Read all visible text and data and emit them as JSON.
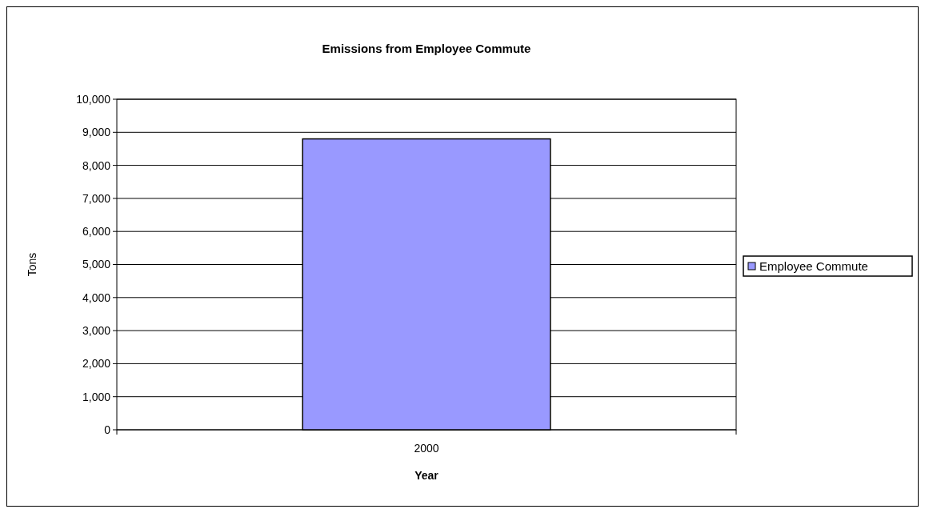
{
  "chart_data": {
    "type": "bar",
    "title": "Emissions from Employee Commute",
    "xlabel": "Year",
    "ylabel": "Tons",
    "categories": [
      "2000"
    ],
    "series": [
      {
        "name": "Employee Commute",
        "color": "#9999ff",
        "values": [
          8800
        ]
      }
    ],
    "ylim": [
      0,
      10000
    ],
    "yticks": [
      {
        "value": 0,
        "label": "0"
      },
      {
        "value": 1000,
        "label": "1,000"
      },
      {
        "value": 2000,
        "label": "2,000"
      },
      {
        "value": 3000,
        "label": "3,000"
      },
      {
        "value": 4000,
        "label": "4,000"
      },
      {
        "value": 5000,
        "label": "5,000"
      },
      {
        "value": 6000,
        "label": "6,000"
      },
      {
        "value": 7000,
        "label": "7,000"
      },
      {
        "value": 8000,
        "label": "8,000"
      },
      {
        "value": 9000,
        "label": "9,000"
      },
      {
        "value": 10000,
        "label": "10,000"
      }
    ],
    "grid": "y",
    "legend": "right"
  }
}
